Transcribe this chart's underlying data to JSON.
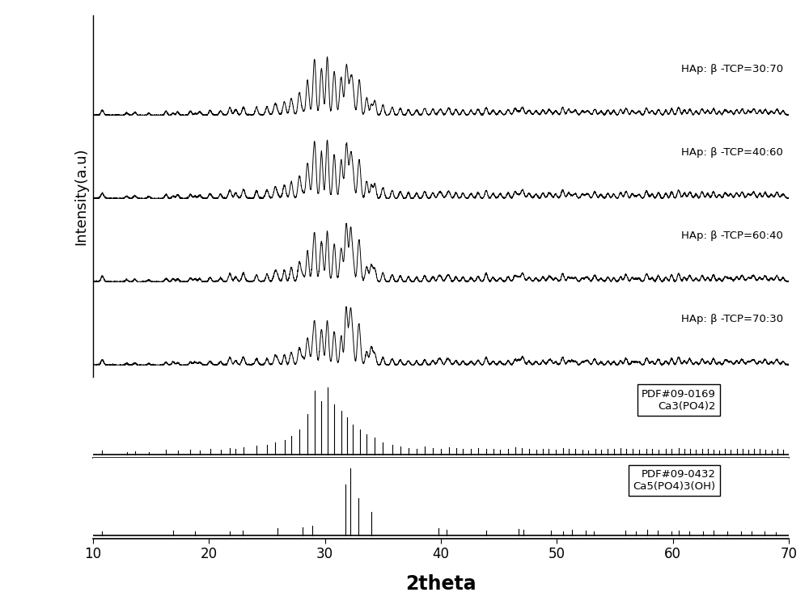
{
  "xlim": [
    10,
    70
  ],
  "xlabel": "2theta",
  "ylabel": "Intensity(a.u)",
  "background_color": "#ffffff",
  "line_color": "#000000",
  "labels": [
    "HAp: β -TCP=30:70",
    "HAp: β -TCP=40:60",
    "HAp: β -TCP=60:40",
    "HAp: β -TCP=70:30"
  ],
  "bcp_label": "PDF#09-0169\nCa3(PO4)2",
  "hap_label": "PDF#09-0432\nCa5(PO4)3(OH)",
  "bcp_peaks": [
    10.8,
    12.9,
    13.6,
    14.8,
    16.3,
    17.3,
    18.4,
    19.2,
    20.1,
    21.0,
    21.8,
    22.3,
    23.0,
    24.1,
    25.0,
    25.7,
    26.5,
    27.1,
    27.8,
    28.5,
    29.1,
    29.7,
    30.2,
    30.8,
    31.4,
    31.9,
    32.4,
    33.0,
    33.6,
    34.3,
    35.0,
    35.8,
    36.5,
    37.2,
    37.9,
    38.6,
    39.3,
    40.0,
    40.7,
    41.3,
    41.9,
    42.6,
    43.2,
    43.9,
    44.5,
    45.1,
    45.8,
    46.4,
    47.0,
    47.6,
    48.2,
    48.8,
    49.3,
    49.9,
    50.5,
    51.0,
    51.6,
    52.2,
    52.7,
    53.3,
    53.8,
    54.4,
    54.9,
    55.5,
    56.0,
    56.5,
    57.1,
    57.7,
    58.2,
    58.8,
    59.4,
    59.9,
    60.5,
    61.0,
    61.5,
    62.0,
    62.5,
    63.0,
    63.5,
    64.0,
    64.5,
    65.0,
    65.5,
    66.0,
    66.5,
    67.0,
    67.5,
    68.0,
    68.5,
    69.0,
    69.5
  ],
  "bcp_intensities": [
    0.06,
    0.04,
    0.05,
    0.04,
    0.07,
    0.06,
    0.07,
    0.06,
    0.08,
    0.07,
    0.1,
    0.09,
    0.11,
    0.13,
    0.14,
    0.18,
    0.22,
    0.28,
    0.38,
    0.6,
    0.95,
    0.8,
    1.0,
    0.75,
    0.65,
    0.55,
    0.45,
    0.38,
    0.3,
    0.25,
    0.18,
    0.14,
    0.12,
    0.1,
    0.09,
    0.12,
    0.1,
    0.09,
    0.11,
    0.1,
    0.09,
    0.08,
    0.1,
    0.09,
    0.08,
    0.07,
    0.09,
    0.11,
    0.1,
    0.08,
    0.07,
    0.09,
    0.08,
    0.07,
    0.1,
    0.09,
    0.08,
    0.07,
    0.06,
    0.08,
    0.07,
    0.09,
    0.08,
    0.1,
    0.09,
    0.08,
    0.07,
    0.09,
    0.08,
    0.07,
    0.09,
    0.08,
    0.1,
    0.09,
    0.08,
    0.07,
    0.09,
    0.08,
    0.07,
    0.06,
    0.08,
    0.07,
    0.09,
    0.08,
    0.07,
    0.09,
    0.08,
    0.07,
    0.06,
    0.08,
    0.07
  ],
  "hap_peaks": [
    10.8,
    16.9,
    18.8,
    21.8,
    22.9,
    25.9,
    28.1,
    28.9,
    31.8,
    32.2,
    32.9,
    34.0,
    39.8,
    40.5,
    43.9,
    46.7,
    47.1,
    49.5,
    50.5,
    51.3,
    52.5,
    53.2,
    55.9,
    56.8,
    57.8,
    58.7,
    59.9,
    60.5,
    61.4,
    62.6,
    63.5,
    64.7,
    65.9,
    66.8,
    67.9,
    68.9
  ],
  "hap_intensities": [
    0.05,
    0.07,
    0.06,
    0.06,
    0.07,
    0.1,
    0.12,
    0.14,
    0.75,
    1.0,
    0.55,
    0.35,
    0.1,
    0.08,
    0.07,
    0.09,
    0.08,
    0.07,
    0.06,
    0.08,
    0.07,
    0.06,
    0.07,
    0.06,
    0.08,
    0.07,
    0.06,
    0.07,
    0.06,
    0.05,
    0.07,
    0.06,
    0.05,
    0.06,
    0.05,
    0.04
  ]
}
